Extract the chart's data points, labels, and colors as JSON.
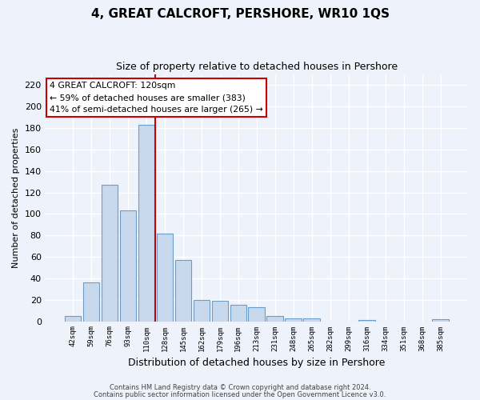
{
  "title": "4, GREAT CALCROFT, PERSHORE, WR10 1QS",
  "subtitle": "Size of property relative to detached houses in Pershore",
  "xlabel": "Distribution of detached houses by size in Pershore",
  "ylabel": "Number of detached properties",
  "bar_labels": [
    "42sqm",
    "59sqm",
    "76sqm",
    "93sqm",
    "110sqm",
    "128sqm",
    "145sqm",
    "162sqm",
    "179sqm",
    "196sqm",
    "213sqm",
    "231sqm",
    "248sqm",
    "265sqm",
    "282sqm",
    "299sqm",
    "316sqm",
    "334sqm",
    "351sqm",
    "368sqm",
    "385sqm"
  ],
  "bar_values": [
    5,
    36,
    127,
    103,
    183,
    82,
    57,
    20,
    19,
    15,
    13,
    5,
    3,
    3,
    0,
    0,
    1,
    0,
    0,
    0,
    2
  ],
  "bar_color": "#c9d9ed",
  "bar_edge_color": "#6a9ec8",
  "vline_color": "#cc0000",
  "annotation_title": "4 GREAT CALCROFT: 120sqm",
  "annotation_line1": "← 59% of detached houses are smaller (383)",
  "annotation_line2": "41% of semi-detached houses are larger (265) →",
  "annotation_box_facecolor": "white",
  "annotation_box_edgecolor": "#cc0000",
  "ylim": [
    0,
    230
  ],
  "yticks": [
    0,
    20,
    40,
    60,
    80,
    100,
    120,
    140,
    160,
    180,
    200,
    220
  ],
  "footer1": "Contains HM Land Registry data © Crown copyright and database right 2024.",
  "footer2": "Contains public sector information licensed under the Open Government Licence v3.0.",
  "bg_color": "#eef2fa",
  "grid_color": "white"
}
